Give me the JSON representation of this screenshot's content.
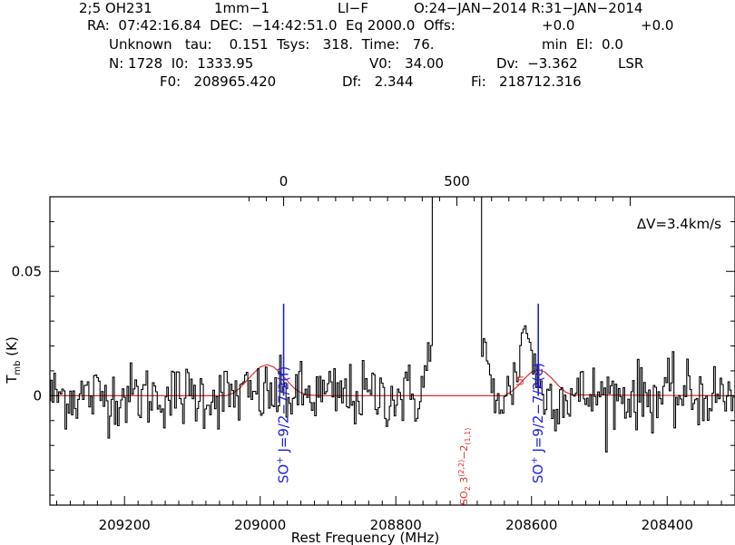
{
  "header": {
    "line1": [
      "2;5 OH231",
      "1mm−1",
      "LI−F",
      "O:24−JAN−2014 R:31−JAN−2014"
    ],
    "line2": [
      "RA:  07:42:16.84  DEC:  −14:42:51.0  Eq 2000.0  Offs:",
      "+0.0",
      "+0.0"
    ],
    "line3": [
      "Unknown   tau:    0.151  Tsys:   318.  Time:   76.",
      "min  El:  0.0"
    ],
    "line4": [
      "N: 1728  I0:  1333.95",
      "V0:   34.00",
      "Dv:  −3.362",
      "LSR"
    ],
    "line5": [
      "F0:   208965.420",
      "Df:   2.344",
      "Fi:   218712.316"
    ]
  },
  "chart_data": {
    "type": "line",
    "xlabel": "Rest Frequency (MHz)",
    "ylabel": "T",
    "ylabel_sub": "mb",
    "ylabel_unit": "(K)",
    "annotation": "ΔV=3.4km/s",
    "xlim": [
      209310,
      208300
    ],
    "ylim": [
      -0.044,
      0.08
    ],
    "x_ticks": [
      209200,
      209000,
      208800,
      208600,
      208400
    ],
    "x_tick_labels": [
      "209200",
      "209000",
      "208800",
      "208600",
      "208400"
    ],
    "y_ticks": [
      0,
      0.05
    ],
    "y_tick_labels": [
      "0",
      "0.05"
    ],
    "top_axis": {
      "tick_labels": [
        "0",
        "500"
      ],
      "tick_freqs": [
        208965.42,
        208710.0
      ]
    },
    "series": [
      {
        "color": "#000000",
        "style": "histogram",
        "x_start": 209310,
        "x_step": -2.344,
        "noise_sigma": 0.0065,
        "broad_line": {
          "center": 208710,
          "halfwidth": 36,
          "peak": 0.3
        },
        "wing_feature": {
          "center": 208608,
          "width": 14,
          "peak": 0.027
        }
      },
      {
        "color": "#e03030",
        "style": "line",
        "x": [
          209300,
          209050,
          209040,
          209030,
          209020,
          209010,
          209000,
          208990,
          208980,
          208970,
          208960,
          208950,
          208940,
          208930,
          208910,
          208640,
          208630,
          208620,
          208610,
          208600,
          208590,
          208580,
          208570,
          208560,
          208550,
          208540,
          208300
        ],
        "y": [
          0,
          0,
          0.001,
          0.003,
          0.006,
          0.009,
          0.0115,
          0.0125,
          0.0115,
          0.009,
          0.006,
          0.003,
          0.0012,
          0.0003,
          0,
          0,
          0.0015,
          0.004,
          0.007,
          0.0095,
          0.0105,
          0.0095,
          0.007,
          0.004,
          0.0015,
          0.0003,
          0
        ]
      }
    ],
    "line_markers": [
      {
        "freq": 208965.42,
        "label": "SO",
        "sup": "+",
        "rest": " J=9/2−7/2(f)",
        "color": "#2020e0"
      },
      {
        "freq": 208590.0,
        "label": "SO",
        "sup": "+",
        "rest": " J=9/2−7/2(e)",
        "color": "#2020e0"
      }
    ],
    "red_labels": [
      {
        "freq": 208700.0,
        "main": "SO",
        "s1": "2",
        "mid": " 3",
        "s2": "(2,2)",
        "mid2": "−2",
        "s3": "(1,1)",
        "color": "#e03030"
      },
      {
        "freq": 208617.0,
        "main": "Ul",
        "color": "#e03030"
      }
    ]
  }
}
